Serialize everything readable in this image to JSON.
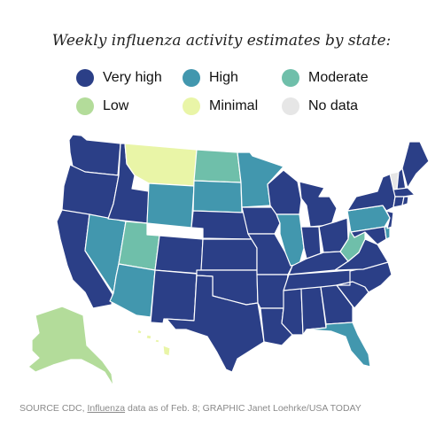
{
  "title": "Weekly influenza activity estimates by state:",
  "legend": [
    {
      "label": "Very high",
      "color": "#2b3f87"
    },
    {
      "label": "High",
      "color": "#4297ae"
    },
    {
      "label": "Moderate",
      "color": "#6fbfaa"
    },
    {
      "label": "Low",
      "color": "#b3dc9a"
    },
    {
      "label": "Minimal",
      "color": "#e9f5a7"
    },
    {
      "label": "No data",
      "color": "#e6e6e6"
    }
  ],
  "states": {
    "WA": "Very high",
    "OR": "Very high",
    "CA": "Very high",
    "NV": "High",
    "ID": "Very high",
    "MT": "Minimal",
    "WY": "High",
    "UT": "Moderate",
    "AZ": "High",
    "CO": "Very high",
    "NM": "Very high",
    "ND": "Moderate",
    "SD": "High",
    "NE": "Very high",
    "KS": "Very high",
    "OK": "Very high",
    "TX": "Very high",
    "MN": "High",
    "IA": "Very high",
    "MO": "Very high",
    "AR": "Very high",
    "LA": "Very high",
    "WI": "Very high",
    "IL": "High",
    "MI": "Very high",
    "IN": "Very high",
    "OH": "Very high",
    "KY": "Very high",
    "TN": "Very high",
    "MS": "Very high",
    "AL": "Very high",
    "GA": "Very high",
    "FL": "High",
    "SC": "Very high",
    "NC": "Very high",
    "VA": "Very high",
    "WV": "Moderate",
    "PA": "High",
    "NY": "Very high",
    "VT": "No data",
    "NH": "Very high",
    "ME": "Very high",
    "MA": "Very high",
    "CT": "Very high",
    "RI": "Very high",
    "NJ": "Very high",
    "DE": "High",
    "MD": "Very high",
    "AK": "Low",
    "HI": "Minimal"
  },
  "source": {
    "prefix": "SOURCE CDC, ",
    "link": "Influenza",
    "suffix": " data as of Feb. 8; GRAPHIC Janet Loehrke/USA TODAY"
  }
}
